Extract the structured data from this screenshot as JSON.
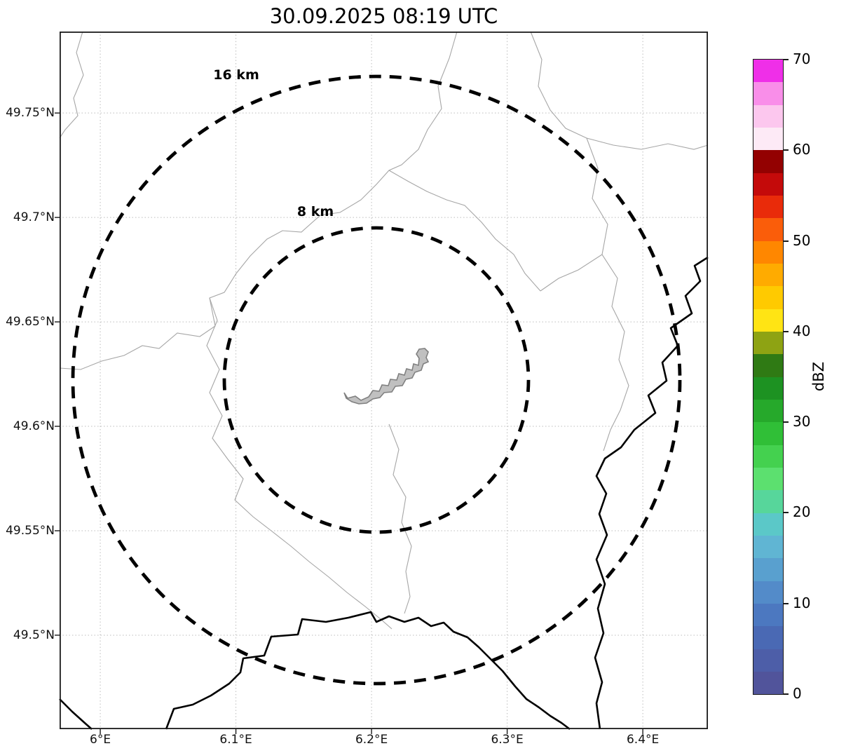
{
  "title": "30.09.2025 08:19 UTC",
  "axes": {
    "x_ticks": [
      {
        "label": "6°E",
        "lon": 6.0
      },
      {
        "label": "6.1°E",
        "lon": 6.1
      },
      {
        "label": "6.2°E",
        "lon": 6.2
      },
      {
        "label": "6.3°E",
        "lon": 6.3
      },
      {
        "label": "6.4°E",
        "lon": 6.4
      }
    ],
    "y_ticks": [
      {
        "label": "49.75°N",
        "lat": 49.75
      },
      {
        "label": "49.7°N",
        "lat": 49.7
      },
      {
        "label": "49.65°N",
        "lat": 49.65
      },
      {
        "label": "49.6°N",
        "lat": 49.6
      },
      {
        "label": "49.55°N",
        "lat": 49.55
      },
      {
        "label": "49.5°N",
        "lat": 49.5
      }
    ]
  },
  "rings": [
    {
      "label": "16 km",
      "radius_km": 16
    },
    {
      "label": "8 km",
      "radius_km": 8
    }
  ],
  "colorbar": {
    "label": "dBZ",
    "min": 0,
    "max": 70,
    "tick_values": [
      0,
      10,
      20,
      30,
      40,
      50,
      60,
      70
    ],
    "segment_step_dbz": 2.5,
    "colors_bottom_to_top": [
      "#51549b",
      "#4d5ea8",
      "#4a69b4",
      "#4c78c0",
      "#538bc9",
      "#59a0cf",
      "#60b5d3",
      "#5bc8c8",
      "#57d69b",
      "#5ce06f",
      "#44d14f",
      "#30bf37",
      "#26a92b",
      "#1d9222",
      "#2f7a14",
      "#8ea313",
      "#ffe414",
      "#ffca00",
      "#ffab00",
      "#ff8700",
      "#fa5d0a",
      "#e92b0a",
      "#c40a0a",
      "#930101",
      "#fdeaf6",
      "#fcc7ee",
      "#f98ee9",
      "#ef2fe8"
    ]
  }
}
